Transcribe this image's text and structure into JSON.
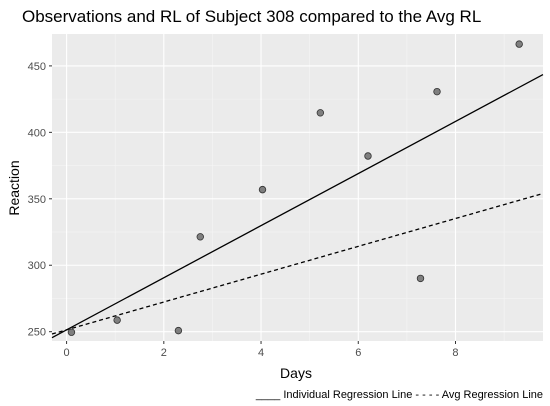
{
  "chart_data": {
    "type": "scatter",
    "title": "Observations and RL of Subject 308 compared to the Avg RL",
    "xlabel": "Days",
    "ylabel": "Reaction",
    "xlim": [
      -0.3,
      9.8
    ],
    "ylim": [
      243,
      474
    ],
    "x_ticks": [
      0,
      2,
      4,
      6,
      8
    ],
    "y_ticks": [
      250,
      300,
      350,
      400,
      450
    ],
    "x_tick_labels": [
      "0",
      "2",
      "4",
      "6",
      "8"
    ],
    "y_tick_labels": [
      "250",
      "300",
      "350",
      "400",
      "450"
    ],
    "grid": true,
    "points": {
      "x": [
        0.1,
        1.04,
        2.3,
        2.75,
        4.03,
        5.22,
        6.2,
        7.28,
        7.62,
        9.31
      ],
      "y": [
        249.6,
        258.7,
        250.8,
        321.4,
        356.9,
        414.7,
        382.2,
        290.1,
        430.6,
        466.4
      ]
    },
    "lines": [
      {
        "name": "Individual Regression Line",
        "style": "solid",
        "intercept": 251.4,
        "slope": 19.6
      },
      {
        "name": "Avg Regression Line",
        "style": "dashed",
        "intercept": 251.4,
        "slope": 10.47
      }
    ],
    "caption": "____ Individual Regression Line - - - - Avg Regression Line",
    "colors": {
      "panel": "#ebebeb",
      "grid_major": "#ffffff",
      "grid_minor": "#f5f5f5",
      "point_fill": "#7f7f7f",
      "point_stroke": "#333333",
      "line": "#000000"
    }
  }
}
